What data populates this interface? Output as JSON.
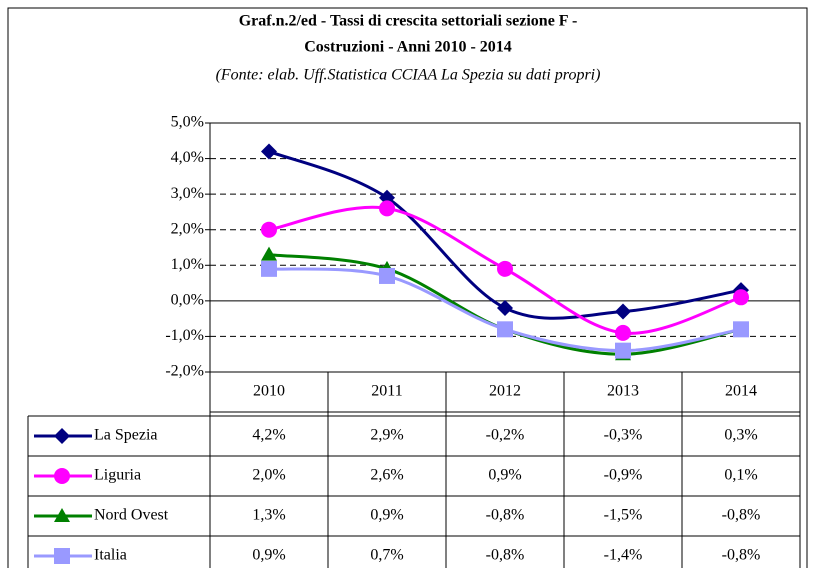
{
  "chart_data": {
    "type": "line",
    "title": [
      "Graf.n.2/ed - Tassi di crescita settoriali sezione F -",
      "Costruzioni - Anni 2010 - 2014"
    ],
    "subtitle": "(Fonte: elab. Uff.Statistica CCIAA La Spezia su dati propri)",
    "categories": [
      "2010",
      "2011",
      "2012",
      "2013",
      "2014"
    ],
    "ylim": [
      -2,
      5
    ],
    "yticks": [
      {
        "value": -2,
        "label": "-2,0%"
      },
      {
        "value": -1,
        "label": "-1,0%"
      },
      {
        "value": 0,
        "label": "0,0%"
      },
      {
        "value": 1,
        "label": "1,0%"
      },
      {
        "value": 2,
        "label": "2,0%"
      },
      {
        "value": 3,
        "label": "3,0%"
      },
      {
        "value": 4,
        "label": "4,0%"
      },
      {
        "value": 5,
        "label": "5,0%"
      }
    ],
    "grid": true,
    "series": [
      {
        "name": "La Spezia",
        "color": "#000080",
        "marker": "diamond",
        "values": [
          4.2,
          2.9,
          -0.2,
          -0.3,
          0.3
        ],
        "value_labels": [
          "4,2%",
          "2,9%",
          "-0,2%",
          "-0,3%",
          "0,3%"
        ]
      },
      {
        "name": "Liguria",
        "color": "#ff00ff",
        "marker": "circle",
        "values": [
          2.0,
          2.6,
          0.9,
          -0.9,
          0.1
        ],
        "value_labels": [
          "2,0%",
          "2,6%",
          "0,9%",
          "-0,9%",
          "0,1%"
        ]
      },
      {
        "name": "Nord Ovest",
        "color": "#008000",
        "marker": "triangle",
        "values": [
          1.3,
          0.9,
          -0.8,
          -1.5,
          -0.8
        ],
        "value_labels": [
          "1,3%",
          "0,9%",
          "-0,8%",
          "-1,5%",
          "-0,8%"
        ]
      },
      {
        "name": "Italia",
        "color": "#9999ff",
        "marker": "square",
        "values": [
          0.9,
          0.7,
          -0.8,
          -1.4,
          -0.8
        ],
        "value_labels": [
          "0,9%",
          "0,7%",
          "-0,8%",
          "-1,4%",
          "-0,8%"
        ]
      }
    ]
  }
}
